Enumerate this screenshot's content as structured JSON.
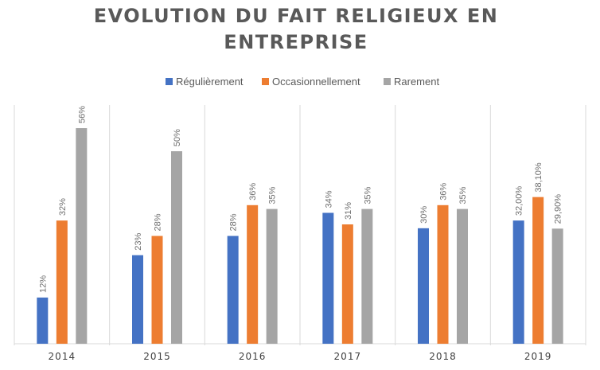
{
  "chart_data": {
    "type": "bar",
    "title_lines": [
      "EVOLUTION DU FAIT RELIGIEUX EN",
      "ENTREPRISE"
    ],
    "categories": [
      "2014",
      "2015",
      "2016",
      "2017",
      "2018",
      "2019"
    ],
    "series": [
      {
        "name": "Régulièrement",
        "color": "#4472C4",
        "values": [
          12,
          23,
          28,
          34,
          30,
          32.0
        ],
        "labels": [
          "12%",
          "23%",
          "28%",
          "34%",
          "30%",
          "32,00%"
        ]
      },
      {
        "name": "Occasionnellement",
        "color": "#ED7D31",
        "values": [
          32,
          28,
          36,
          31,
          36,
          38.1
        ],
        "labels": [
          "32%",
          "28%",
          "36%",
          "31%",
          "36%",
          "38,10%"
        ]
      },
      {
        "name": "Rarement",
        "color": "#A5A5A5",
        "values": [
          56,
          50,
          35,
          35,
          35,
          29.9
        ],
        "labels": [
          "56%",
          "50%",
          "35%",
          "35%",
          "35%",
          "29,90%"
        ]
      }
    ],
    "ylim": [
      0,
      62
    ],
    "xlabel": "",
    "ylabel": "",
    "legend_position": "top-center",
    "grid": false,
    "category_separators": true
  }
}
